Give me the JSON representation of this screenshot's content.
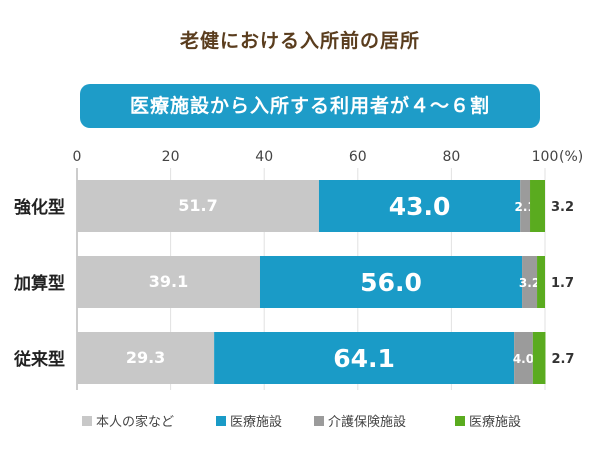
{
  "title": "老健における入所前の居所",
  "subtitle": "医療施設から入所する利用者が４～６割",
  "chart_data": {
    "type": "bar",
    "orientation": "horizontal",
    "stacked": true,
    "categories": [
      "強化型",
      "加算型",
      "従来型"
    ],
    "series": [
      {
        "name": "本人の家など",
        "color": "#c8c8c8",
        "values": [
          51.7,
          39.1,
          29.3
        ]
      },
      {
        "name": "医療施設",
        "color": "#1a9bc7",
        "values": [
          43.0,
          56.0,
          64.1
        ]
      },
      {
        "name": "介護保険施設",
        "color": "#9b9b9b",
        "values": [
          2.1,
          3.2,
          4.0
        ]
      },
      {
        "name": "医療施設",
        "color": "#5aab1f",
        "values": [
          3.2,
          1.7,
          2.7
        ]
      }
    ],
    "xlim": [
      0,
      100
    ],
    "x_ticks": [
      "0",
      "20",
      "40",
      "60",
      "80",
      "100"
    ],
    "x_unit": "(%)",
    "legend_position": "bottom"
  }
}
